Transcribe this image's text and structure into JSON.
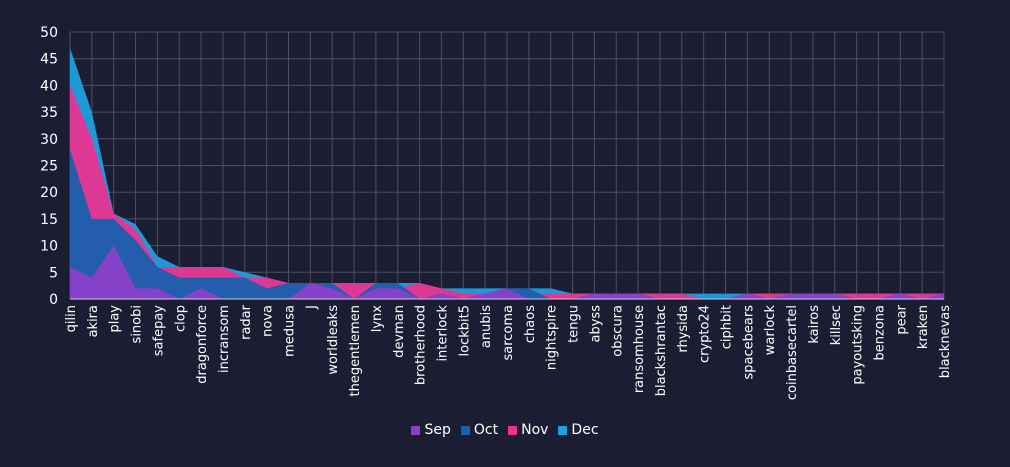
{
  "colors": {
    "background": "#1b1e33",
    "grid": "#4a4e66",
    "text": "#ffffff"
  },
  "chart_data": {
    "type": "area",
    "title": "",
    "xlabel": "",
    "ylabel": "",
    "ylim": [
      0,
      50
    ],
    "yticks": [
      0,
      5,
      10,
      15,
      20,
      25,
      30,
      35,
      40,
      45,
      50
    ],
    "grid": true,
    "stacked": false,
    "legend_position": "bottom",
    "categories": [
      "qilin",
      "akira",
      "play",
      "sinobi",
      "safepay",
      "clop",
      "dragonforce",
      "incransom",
      "radar",
      "nova",
      "medusa",
      "J",
      "worldleaks",
      "thegentlemen",
      "lynx",
      "devman",
      "brotherhood",
      "interlock",
      "lockbit5",
      "anubis",
      "sarcoma",
      "chaos",
      "nightspire",
      "tengu",
      "abyss",
      "obscura",
      "ransomhouse",
      "blackshrantac",
      "rhysida",
      "crypto24",
      "ciphbit",
      "spacebears",
      "warlock",
      "coinbasecartel",
      "kairos",
      "killsec",
      "payoutsking",
      "benzona",
      "pear",
      "kraken",
      "blacknevas"
    ],
    "series": [
      {
        "name": "Dec",
        "color": "#1f9fe0",
        "values": [
          47,
          35,
          16,
          14,
          8,
          6,
          6,
          6,
          5,
          4,
          3,
          3,
          3,
          3,
          3,
          3,
          3,
          2,
          2,
          2,
          2,
          2,
          2,
          1,
          1,
          1,
          1,
          1,
          1,
          1,
          1,
          1,
          1,
          1,
          1,
          1,
          1,
          1,
          1,
          1,
          1
        ]
      },
      {
        "name": "Nov",
        "color": "#e8338f",
        "values": [
          40,
          30,
          16,
          13,
          6,
          6,
          6,
          6,
          4,
          4,
          3,
          3,
          3,
          3,
          3,
          2,
          3,
          2,
          1,
          1,
          1,
          1,
          1,
          1,
          1,
          1,
          1,
          1,
          1,
          0,
          0,
          1,
          1,
          1,
          1,
          1,
          1,
          1,
          1,
          1,
          1
        ]
      },
      {
        "name": "Oct",
        "color": "#1a5fae",
        "values": [
          28,
          15,
          15,
          11,
          6,
          4,
          4,
          4,
          4,
          2,
          3,
          3,
          3,
          0,
          3,
          3,
          0,
          1,
          0,
          1,
          2,
          2,
          0,
          0,
          1,
          1,
          1,
          0,
          0,
          0,
          0,
          1,
          0,
          1,
          1,
          1,
          0,
          0,
          1,
          0,
          1
        ]
      },
      {
        "name": "Sep",
        "color": "#8a3fc8",
        "values": [
          6,
          4,
          10,
          2,
          2,
          0,
          2,
          0,
          0,
          0,
          0,
          3,
          2,
          0,
          2,
          2,
          0,
          1,
          0,
          1,
          2,
          0,
          0,
          0,
          1,
          1,
          1,
          0,
          0,
          0,
          0,
          1,
          0,
          1,
          1,
          1,
          0,
          0,
          1,
          0,
          1
        ]
      }
    ],
    "legend": [
      "Sep",
      "Oct",
      "Nov",
      "Dec"
    ]
  }
}
